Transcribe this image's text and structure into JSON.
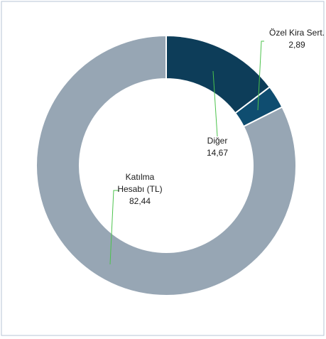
{
  "chart_data": {
    "type": "donut",
    "categories": [
      "Diğer",
      "Özel Kira Sert.",
      "Katılma Hesabı (TL)"
    ],
    "values": [
      14.67,
      2.89,
      82.44
    ],
    "value_labels": [
      "14,67",
      "2,89",
      "82,44"
    ],
    "colors": [
      "#0d3d59",
      "#0f4d70",
      "#97a6b4"
    ]
  }
}
